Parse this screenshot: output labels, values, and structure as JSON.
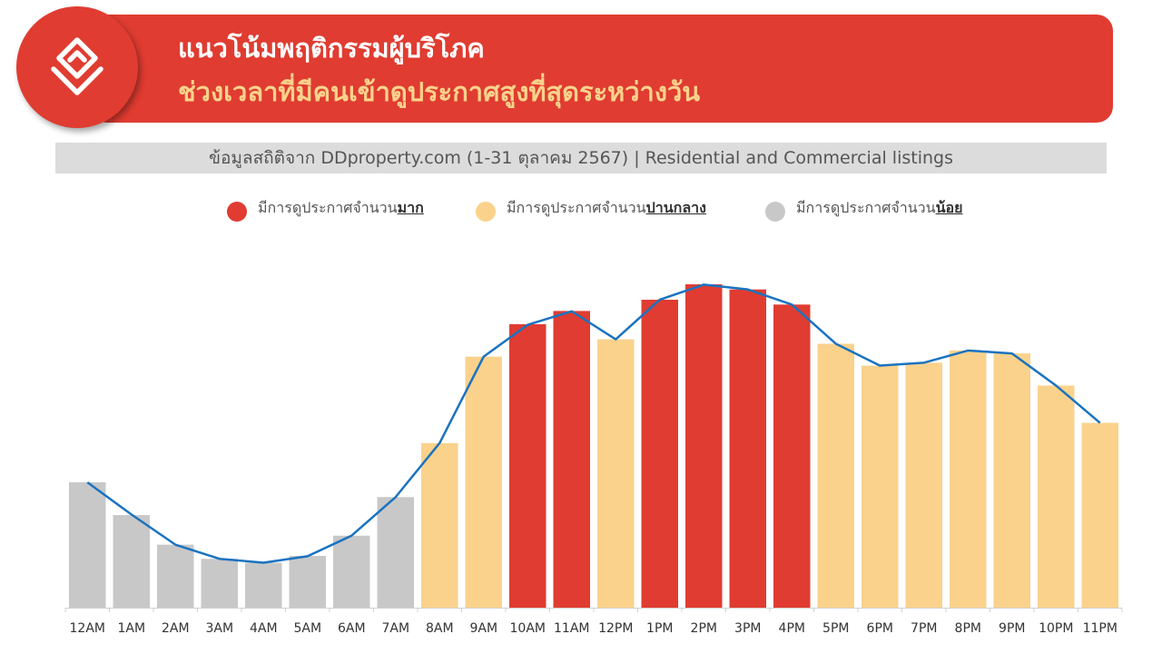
{
  "header": {
    "title": "แนวโน้มพฤติกรรมผู้บริโภค",
    "subtitle": "ช่วงเวลาที่มีคนเข้าดูประกาศสูงที่สุดระหว่างวัน",
    "logo": "home-logo-icon"
  },
  "source": "ข้อมูลสถิติจาก DDproperty.com (1-31 ตุลาคม 2567) | Residential and Commercial listings",
  "legend": [
    {
      "prefix": "มีการดูประกาศจำนวน",
      "bold": "มาก",
      "color": "#e03c31"
    },
    {
      "prefix": "มีการดูประกาศจำนวน",
      "bold": "ปานกลาง",
      "color": "#fad28c"
    },
    {
      "prefix": "มีการดูประกาศจำนวน",
      "bold": "น้อย",
      "color": "#c8c8c8"
    }
  ],
  "colors": {
    "high": "#e03c31",
    "medium": "#fad28c",
    "low": "#c8c8c8",
    "line": "#1a73c0"
  },
  "chart_data": {
    "type": "bar",
    "categories": [
      "12AM",
      "1AM",
      "2AM",
      "3AM",
      "4AM",
      "5AM",
      "6AM",
      "7AM",
      "8AM",
      "9AM",
      "10AM",
      "11AM",
      "12PM",
      "1PM",
      "2PM",
      "3PM",
      "4PM",
      "5PM",
      "6PM",
      "7PM",
      "8PM",
      "9PM",
      "10PM",
      "11PM"
    ],
    "values": [
      39,
      28.8,
      19.6,
      15.2,
      14,
      16.1,
      22.4,
      34.4,
      51.2,
      78.1,
      88.2,
      92.3,
      83.5,
      95.8,
      100.6,
      99,
      94.3,
      82.1,
      75.3,
      76.2,
      80,
      79.1,
      69.1,
      57.5
    ],
    "line_values": [
      39,
      29,
      19.6,
      15.2,
      14,
      16,
      22.4,
      34.4,
      51.2,
      78.1,
      88,
      92.2,
      83.5,
      95.8,
      100.5,
      99,
      94.3,
      82.1,
      75.3,
      76.2,
      80,
      79.1,
      69.1,
      57.5
    ],
    "levels": [
      "low",
      "low",
      "low",
      "low",
      "low",
      "low",
      "low",
      "low",
      "medium",
      "medium",
      "high",
      "high",
      "medium",
      "high",
      "high",
      "high",
      "high",
      "medium",
      "medium",
      "medium",
      "medium",
      "medium",
      "medium",
      "medium"
    ],
    "ylim": [
      0,
      105
    ],
    "grid": false
  }
}
